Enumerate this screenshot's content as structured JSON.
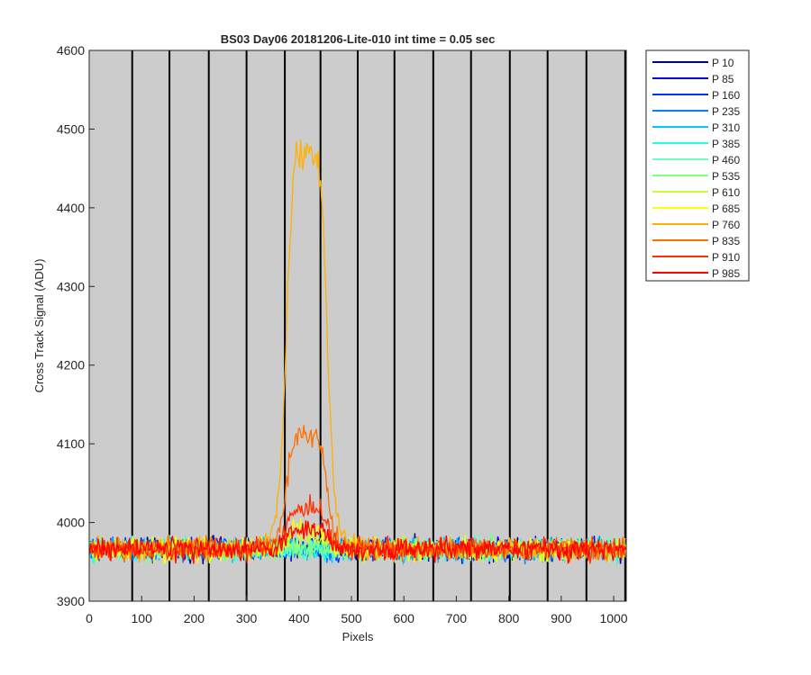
{
  "chart_data": {
    "type": "line",
    "title": "BS03 Day06 20181206-Lite-010 int time = 0.05 sec",
    "xlabel": "Pixels",
    "ylabel": "Cross Track Signal (ADU)",
    "xlim": [
      0,
      1024
    ],
    "ylim": [
      3900,
      4600
    ],
    "xticks": [
      0,
      100,
      200,
      300,
      400,
      500,
      600,
      700,
      800,
      900,
      1000
    ],
    "yticks": [
      3900,
      4000,
      4100,
      4200,
      4300,
      4400,
      4500,
      4600
    ],
    "vertical_lines_x": [
      82,
      153,
      228,
      300,
      373,
      441,
      512,
      582,
      656,
      728,
      802,
      874,
      948,
      1022
    ],
    "background": "#cccccc",
    "legend_position": "outside-top-right",
    "baseline_y": 3966,
    "noise_amplitude": 10,
    "series": [
      {
        "name": "P 10",
        "color": "#00008f",
        "peak_y": 3966
      },
      {
        "name": "P 85",
        "color": "#0000df",
        "peak_y": 3966
      },
      {
        "name": "P 160",
        "color": "#0030ff",
        "peak_y": 3966
      },
      {
        "name": "P 235",
        "color": "#0080ff",
        "peak_y": 3966
      },
      {
        "name": "P 310",
        "color": "#00c8ff",
        "peak_y": 3966
      },
      {
        "name": "P 385",
        "color": "#20ffdf",
        "peak_y": 3966
      },
      {
        "name": "P 460",
        "color": "#70ffc0",
        "peak_y": 3966
      },
      {
        "name": "P 535",
        "color": "#80ff80",
        "peak_y": 3966
      },
      {
        "name": "P 610",
        "color": "#c8ff30",
        "peak_y": 3980
      },
      {
        "name": "P 685",
        "color": "#ffff00",
        "peak_y": 3992
      },
      {
        "name": "P 760",
        "color": "#ffb000",
        "peak_y": 4470
      },
      {
        "name": "P 835",
        "color": "#ff7000",
        "peak_y": 4110
      },
      {
        "name": "P 910",
        "color": "#ff3000",
        "peak_y": 4018
      },
      {
        "name": "P 985",
        "color": "#ff0000",
        "peak_y": 3992
      }
    ]
  }
}
